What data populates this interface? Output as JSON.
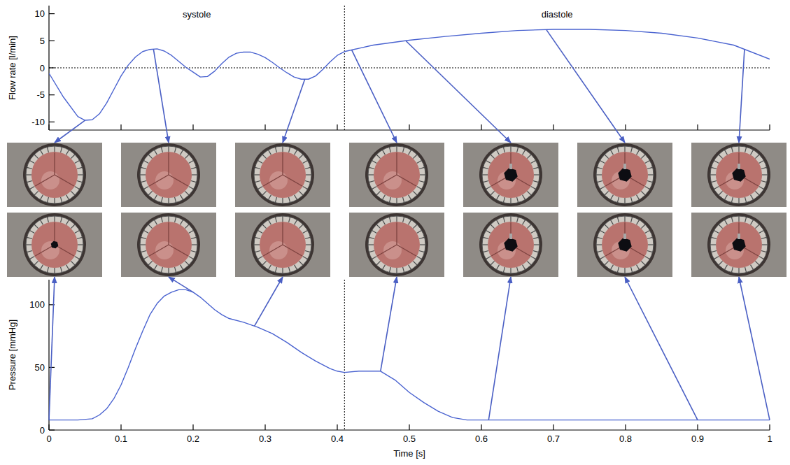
{
  "chart_data": [
    {
      "type": "line",
      "y_label": "Flow rate [l/min]",
      "annotations": [
        "systole",
        "diastole"
      ],
      "x": [
        0,
        0.02,
        0.04,
        0.05,
        0.06,
        0.07,
        0.08,
        0.09,
        0.1,
        0.11,
        0.12,
        0.13,
        0.14,
        0.15,
        0.16,
        0.17,
        0.18,
        0.19,
        0.2,
        0.21,
        0.22,
        0.23,
        0.24,
        0.25,
        0.26,
        0.27,
        0.28,
        0.29,
        0.3,
        0.31,
        0.32,
        0.33,
        0.34,
        0.35,
        0.36,
        0.37,
        0.38,
        0.39,
        0.4,
        0.41,
        0.43,
        0.45,
        0.5,
        0.55,
        0.6,
        0.65,
        0.7,
        0.75,
        0.8,
        0.85,
        0.9,
        0.95,
        1
      ],
      "values": [
        -1,
        -5.4,
        -9,
        -9.7,
        -9.6,
        -8.5,
        -6.5,
        -4,
        -1.5,
        0.5,
        2,
        3,
        3.4,
        3.5,
        3.1,
        2.3,
        1.2,
        0.1,
        -0.8,
        -1.7,
        -1.6,
        -0.6,
        0.8,
        2,
        2.7,
        2.9,
        2.9,
        2.5,
        1.9,
        1,
        0,
        -0.9,
        -1.7,
        -2.1,
        -2.1,
        -1.5,
        -0.3,
        1.1,
        2.3,
        3,
        3.6,
        4.2,
        5.1,
        5.8,
        6.4,
        6.9,
        7.1,
        7.1,
        6.9,
        6.4,
        5.5,
        4.2,
        1.6
      ],
      "color": "#4a63d0",
      "xlim": [
        0,
        1
      ],
      "ylim": [
        -11.5,
        11.5
      ],
      "xticks": [
        0,
        0.1,
        0.2,
        0.3,
        0.4,
        0.5,
        0.6,
        0.7,
        0.8,
        0.9,
        1
      ],
      "yticks": [
        -10,
        -5,
        0,
        5,
        10
      ],
      "tick_labels": "y",
      "hline": 0,
      "vline": 0.41,
      "snapshot_times": [
        0.05,
        0.145,
        0.355,
        0.42,
        0.495,
        0.69,
        0.965
      ]
    },
    {
      "type": "line",
      "x_label": "Time [s]",
      "y_label": "Pressure [mmHg]",
      "x": [
        0,
        0.04,
        0.06,
        0.07,
        0.08,
        0.09,
        0.1,
        0.11,
        0.12,
        0.13,
        0.14,
        0.15,
        0.16,
        0.17,
        0.18,
        0.19,
        0.2,
        0.21,
        0.22,
        0.23,
        0.24,
        0.25,
        0.27,
        0.29,
        0.31,
        0.33,
        0.35,
        0.37,
        0.39,
        0.4,
        0.41,
        0.43,
        0.46,
        0.48,
        0.5,
        0.52,
        0.54,
        0.56,
        0.58,
        0.6,
        1
      ],
      "values": [
        8,
        8,
        9,
        12,
        17,
        25,
        36,
        50,
        65,
        79,
        92,
        101,
        107,
        110,
        112,
        112,
        110,
        106,
        101,
        96,
        92,
        89,
        86,
        82,
        77,
        70,
        62,
        55,
        49,
        47,
        46,
        47,
        47,
        40,
        30,
        22,
        15,
        10,
        8,
        8,
        8
      ],
      "color": "#4a63d0",
      "xlim": [
        0,
        1
      ],
      "ylim": [
        0,
        120
      ],
      "xticks": [
        0,
        0.1,
        0.2,
        0.3,
        0.4,
        0.5,
        0.6,
        0.7,
        0.8,
        0.9,
        1
      ],
      "yticks": [
        0,
        50,
        100
      ],
      "vline": 0.41,
      "snapshot_times": [
        0,
        0.2,
        0.285,
        0.46,
        0.61,
        0.9,
        1
      ]
    }
  ]
}
